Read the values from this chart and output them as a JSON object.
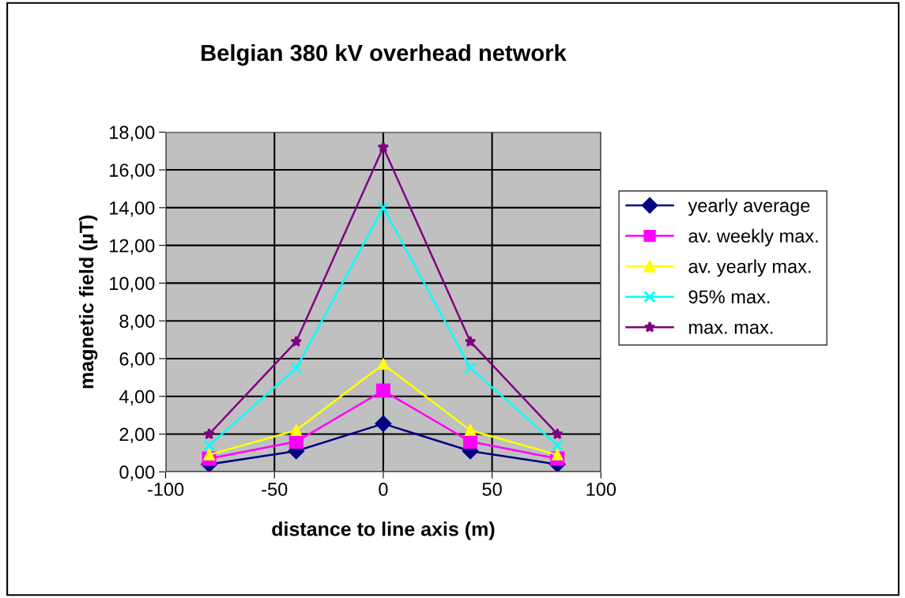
{
  "chart_data": {
    "type": "line",
    "title": "Belgian 380 kV overhead network",
    "xlabel": "distance to line axis (m)",
    "ylabel": "magnetic field (µT)",
    "x": [
      -80,
      -40,
      0,
      40,
      80
    ],
    "series": [
      {
        "name": "yearly average",
        "color": "#000080",
        "marker": "diamond",
        "values": [
          0.4,
          1.1,
          2.55,
          1.1,
          0.4
        ]
      },
      {
        "name": "av. weekly max.",
        "color": "#ff00ff",
        "marker": "square",
        "values": [
          0.7,
          1.6,
          4.3,
          1.6,
          0.7
        ]
      },
      {
        "name": "av. yearly max.",
        "color": "#ffff00",
        "marker": "triangle",
        "values": [
          0.9,
          2.2,
          5.7,
          2.2,
          0.9
        ]
      },
      {
        "name": "95% max.",
        "color": "#00ffff",
        "marker": "cross",
        "values": [
          1.4,
          5.5,
          14.0,
          5.5,
          1.4
        ]
      },
      {
        "name": "max. max.",
        "color": "#800080",
        "marker": "star",
        "values": [
          2.0,
          6.9,
          17.2,
          6.9,
          2.0
        ]
      }
    ],
    "xlim": [
      -100,
      100
    ],
    "xticks": [
      -100,
      -50,
      0,
      50,
      100
    ],
    "ylim": [
      0,
      18
    ],
    "yticks": [
      {
        "value": 0,
        "label": "0,00"
      },
      {
        "value": 2,
        "label": "2,00"
      },
      {
        "value": 4,
        "label": "4,00"
      },
      {
        "value": 6,
        "label": "6,00"
      },
      {
        "value": 8,
        "label": "8,00"
      },
      {
        "value": 10,
        "label": "10,00"
      },
      {
        "value": 12,
        "label": "12,00"
      },
      {
        "value": 14,
        "label": "14,00"
      },
      {
        "value": 16,
        "label": "16,00"
      },
      {
        "value": 18,
        "label": "18,00"
      }
    ],
    "grid": true,
    "legend": "right",
    "line_style": "solid"
  }
}
